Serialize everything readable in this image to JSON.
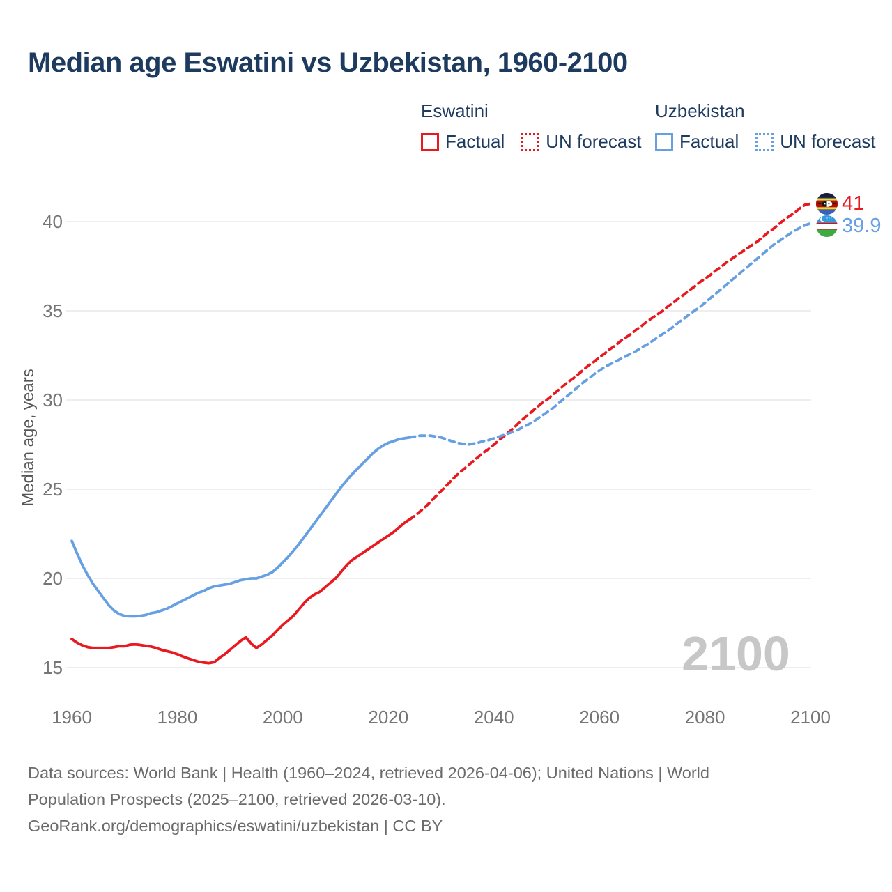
{
  "title": "Median age Eswatini vs Uzbekistan, 1960-2100",
  "legend": {
    "groups": [
      {
        "header": "Eswatini",
        "color": "#e8191f",
        "items": [
          {
            "label": "Factual",
            "style": "solid"
          },
          {
            "label": "UN forecast",
            "style": "dotted"
          }
        ]
      },
      {
        "header": "Uzbekistan",
        "color": "#67a0e2",
        "items": [
          {
            "label": "Factual",
            "style": "solid"
          },
          {
            "label": "UN forecast",
            "style": "dotted"
          }
        ]
      }
    ]
  },
  "chart_data": {
    "type": "line",
    "title": "Median age Eswatini vs Uzbekistan, 1960-2100",
    "xlabel": "",
    "ylabel": "Median age, years",
    "xlim": [
      1960,
      2100
    ],
    "ylim": [
      15,
      40
    ],
    "x_ticks": [
      1960,
      1980,
      2000,
      2020,
      2040,
      2060,
      2080,
      2100
    ],
    "y_ticks": [
      15,
      20,
      25,
      30,
      35,
      40
    ],
    "grid": "horizontal",
    "legend_position": "top",
    "watermark": "2100",
    "series": [
      {
        "name": "Eswatini factual",
        "color": "#e8191f",
        "dash": false,
        "points": [
          [
            1960,
            16.6
          ],
          [
            1961,
            16.4
          ],
          [
            1962,
            16.25
          ],
          [
            1963,
            16.15
          ],
          [
            1964,
            16.1
          ],
          [
            1965,
            16.1
          ],
          [
            1966,
            16.1
          ],
          [
            1967,
            16.1
          ],
          [
            1968,
            16.15
          ],
          [
            1969,
            16.2
          ],
          [
            1970,
            16.2
          ],
          [
            1971,
            16.28
          ],
          [
            1972,
            16.3
          ],
          [
            1973,
            16.27
          ],
          [
            1974,
            16.22
          ],
          [
            1975,
            16.18
          ],
          [
            1976,
            16.1
          ],
          [
            1977,
            16.0
          ],
          [
            1978,
            15.92
          ],
          [
            1979,
            15.85
          ],
          [
            1980,
            15.75
          ],
          [
            1981,
            15.63
          ],
          [
            1982,
            15.52
          ],
          [
            1983,
            15.42
          ],
          [
            1984,
            15.33
          ],
          [
            1985,
            15.28
          ],
          [
            1986,
            15.25
          ],
          [
            1987,
            15.3
          ],
          [
            1988,
            15.55
          ],
          [
            1989,
            15.75
          ],
          [
            1990,
            16.0
          ],
          [
            1991,
            16.25
          ],
          [
            1992,
            16.5
          ],
          [
            1993,
            16.7
          ],
          [
            1994,
            16.35
          ],
          [
            1995,
            16.1
          ],
          [
            1996,
            16.3
          ],
          [
            1997,
            16.55
          ],
          [
            1998,
            16.8
          ],
          [
            1999,
            17.1
          ],
          [
            2000,
            17.4
          ],
          [
            2001,
            17.65
          ],
          [
            2002,
            17.9
          ],
          [
            2003,
            18.25
          ],
          [
            2004,
            18.6
          ],
          [
            2005,
            18.9
          ],
          [
            2006,
            19.1
          ],
          [
            2007,
            19.25
          ],
          [
            2008,
            19.5
          ],
          [
            2009,
            19.75
          ],
          [
            2010,
            20.0
          ],
          [
            2011,
            20.35
          ],
          [
            2012,
            20.7
          ],
          [
            2013,
            21.0
          ],
          [
            2014,
            21.2
          ],
          [
            2015,
            21.4
          ],
          [
            2016,
            21.6
          ],
          [
            2017,
            21.8
          ],
          [
            2018,
            22.0
          ],
          [
            2019,
            22.2
          ],
          [
            2020,
            22.4
          ],
          [
            2021,
            22.6
          ],
          [
            2022,
            22.85
          ],
          [
            2023,
            23.1
          ],
          [
            2024,
            23.3
          ]
        ]
      },
      {
        "name": "Eswatini UN forecast",
        "color": "#e8191f",
        "dash": true,
        "points": [
          [
            2024,
            23.3
          ],
          [
            2025,
            23.5
          ],
          [
            2026,
            23.75
          ],
          [
            2027,
            24.0
          ],
          [
            2028,
            24.3
          ],
          [
            2029,
            24.6
          ],
          [
            2030,
            24.9
          ],
          [
            2031,
            25.2
          ],
          [
            2032,
            25.5
          ],
          [
            2033,
            25.8
          ],
          [
            2034,
            26.05
          ],
          [
            2035,
            26.3
          ],
          [
            2036,
            26.55
          ],
          [
            2037,
            26.8
          ],
          [
            2038,
            27.05
          ],
          [
            2039,
            27.25
          ],
          [
            2040,
            27.5
          ],
          [
            2041,
            27.75
          ],
          [
            2042,
            28.0
          ],
          [
            2043,
            28.25
          ],
          [
            2044,
            28.5
          ],
          [
            2045,
            28.8
          ],
          [
            2046,
            29.05
          ],
          [
            2047,
            29.3
          ],
          [
            2048,
            29.55
          ],
          [
            2049,
            29.8
          ],
          [
            2050,
            30.0
          ],
          [
            2051,
            30.25
          ],
          [
            2052,
            30.5
          ],
          [
            2053,
            30.75
          ],
          [
            2054,
            31.0
          ],
          [
            2055,
            31.2
          ],
          [
            2056,
            31.45
          ],
          [
            2057,
            31.7
          ],
          [
            2058,
            31.95
          ],
          [
            2059,
            32.15
          ],
          [
            2060,
            32.4
          ],
          [
            2061,
            32.6
          ],
          [
            2062,
            32.85
          ],
          [
            2063,
            33.05
          ],
          [
            2064,
            33.3
          ],
          [
            2065,
            33.5
          ],
          [
            2066,
            33.7
          ],
          [
            2067,
            33.95
          ],
          [
            2068,
            34.15
          ],
          [
            2069,
            34.4
          ],
          [
            2070,
            34.6
          ],
          [
            2071,
            34.8
          ],
          [
            2072,
            35.0
          ],
          [
            2073,
            35.25
          ],
          [
            2074,
            35.45
          ],
          [
            2075,
            35.7
          ],
          [
            2076,
            35.9
          ],
          [
            2077,
            36.15
          ],
          [
            2078,
            36.35
          ],
          [
            2079,
            36.6
          ],
          [
            2080,
            36.8
          ],
          [
            2081,
            37.0
          ],
          [
            2082,
            37.25
          ],
          [
            2083,
            37.45
          ],
          [
            2084,
            37.7
          ],
          [
            2085,
            37.9
          ],
          [
            2086,
            38.1
          ],
          [
            2087,
            38.3
          ],
          [
            2088,
            38.5
          ],
          [
            2089,
            38.7
          ],
          [
            2090,
            38.9
          ],
          [
            2091,
            39.15
          ],
          [
            2092,
            39.4
          ],
          [
            2093,
            39.6
          ],
          [
            2094,
            39.85
          ],
          [
            2095,
            40.1
          ],
          [
            2096,
            40.3
          ],
          [
            2097,
            40.5
          ],
          [
            2098,
            40.75
          ],
          [
            2099,
            40.95
          ],
          [
            2100,
            41.0
          ]
        ]
      },
      {
        "name": "Uzbekistan factual",
        "color": "#67a0e2",
        "dash": false,
        "points": [
          [
            1960,
            22.1
          ],
          [
            1961,
            21.4
          ],
          [
            1962,
            20.75
          ],
          [
            1963,
            20.2
          ],
          [
            1964,
            19.7
          ],
          [
            1965,
            19.3
          ],
          [
            1966,
            18.9
          ],
          [
            1967,
            18.5
          ],
          [
            1968,
            18.2
          ],
          [
            1969,
            18.0
          ],
          [
            1970,
            17.9
          ],
          [
            1971,
            17.88
          ],
          [
            1972,
            17.88
          ],
          [
            1973,
            17.9
          ],
          [
            1974,
            17.95
          ],
          [
            1975,
            18.05
          ],
          [
            1976,
            18.1
          ],
          [
            1977,
            18.2
          ],
          [
            1978,
            18.3
          ],
          [
            1979,
            18.45
          ],
          [
            1980,
            18.6
          ],
          [
            1981,
            18.75
          ],
          [
            1982,
            18.9
          ],
          [
            1983,
            19.05
          ],
          [
            1984,
            19.2
          ],
          [
            1985,
            19.3
          ],
          [
            1986,
            19.45
          ],
          [
            1987,
            19.55
          ],
          [
            1988,
            19.6
          ],
          [
            1989,
            19.65
          ],
          [
            1990,
            19.7
          ],
          [
            1991,
            19.8
          ],
          [
            1992,
            19.9
          ],
          [
            1993,
            19.95
          ],
          [
            1994,
            20.0
          ],
          [
            1995,
            20.0
          ],
          [
            1996,
            20.1
          ],
          [
            1997,
            20.2
          ],
          [
            1998,
            20.35
          ],
          [
            1999,
            20.6
          ],
          [
            2000,
            20.9
          ],
          [
            2001,
            21.2
          ],
          [
            2002,
            21.55
          ],
          [
            2003,
            21.9
          ],
          [
            2004,
            22.3
          ],
          [
            2005,
            22.7
          ],
          [
            2006,
            23.1
          ],
          [
            2007,
            23.5
          ],
          [
            2008,
            23.9
          ],
          [
            2009,
            24.3
          ],
          [
            2010,
            24.7
          ],
          [
            2011,
            25.1
          ],
          [
            2012,
            25.45
          ],
          [
            2013,
            25.8
          ],
          [
            2014,
            26.1
          ],
          [
            2015,
            26.4
          ],
          [
            2016,
            26.7
          ],
          [
            2017,
            27.0
          ],
          [
            2018,
            27.25
          ],
          [
            2019,
            27.45
          ],
          [
            2020,
            27.6
          ],
          [
            2021,
            27.7
          ],
          [
            2022,
            27.8
          ],
          [
            2023,
            27.85
          ],
          [
            2024,
            27.9
          ]
        ]
      },
      {
        "name": "Uzbekistan UN forecast",
        "color": "#67a0e2",
        "dash": true,
        "points": [
          [
            2024,
            27.9
          ],
          [
            2025,
            27.95
          ],
          [
            2026,
            28.0
          ],
          [
            2027,
            28.0
          ],
          [
            2028,
            28.0
          ],
          [
            2029,
            27.95
          ],
          [
            2030,
            27.9
          ],
          [
            2031,
            27.8
          ],
          [
            2032,
            27.7
          ],
          [
            2033,
            27.6
          ],
          [
            2034,
            27.55
          ],
          [
            2035,
            27.5
          ],
          [
            2036,
            27.55
          ],
          [
            2037,
            27.6
          ],
          [
            2038,
            27.7
          ],
          [
            2039,
            27.75
          ],
          [
            2040,
            27.85
          ],
          [
            2041,
            27.95
          ],
          [
            2042,
            28.05
          ],
          [
            2043,
            28.15
          ],
          [
            2044,
            28.25
          ],
          [
            2045,
            28.4
          ],
          [
            2046,
            28.55
          ],
          [
            2047,
            28.7
          ],
          [
            2048,
            28.9
          ],
          [
            2049,
            29.1
          ],
          [
            2050,
            29.3
          ],
          [
            2051,
            29.5
          ],
          [
            2052,
            29.75
          ],
          [
            2053,
            30.0
          ],
          [
            2054,
            30.25
          ],
          [
            2055,
            30.5
          ],
          [
            2056,
            30.75
          ],
          [
            2057,
            31.0
          ],
          [
            2058,
            31.2
          ],
          [
            2059,
            31.45
          ],
          [
            2060,
            31.65
          ],
          [
            2061,
            31.85
          ],
          [
            2062,
            32.0
          ],
          [
            2063,
            32.15
          ],
          [
            2064,
            32.3
          ],
          [
            2065,
            32.45
          ],
          [
            2066,
            32.6
          ],
          [
            2067,
            32.75
          ],
          [
            2068,
            32.95
          ],
          [
            2069,
            33.1
          ],
          [
            2070,
            33.3
          ],
          [
            2071,
            33.5
          ],
          [
            2072,
            33.7
          ],
          [
            2073,
            33.9
          ],
          [
            2074,
            34.1
          ],
          [
            2075,
            34.35
          ],
          [
            2076,
            34.55
          ],
          [
            2077,
            34.8
          ],
          [
            2078,
            35.0
          ],
          [
            2079,
            35.2
          ],
          [
            2080,
            35.45
          ],
          [
            2081,
            35.7
          ],
          [
            2082,
            35.95
          ],
          [
            2083,
            36.2
          ],
          [
            2084,
            36.45
          ],
          [
            2085,
            36.7
          ],
          [
            2086,
            36.95
          ],
          [
            2087,
            37.2
          ],
          [
            2088,
            37.45
          ],
          [
            2089,
            37.7
          ],
          [
            2090,
            37.95
          ],
          [
            2091,
            38.2
          ],
          [
            2092,
            38.45
          ],
          [
            2093,
            38.7
          ],
          [
            2094,
            38.9
          ],
          [
            2095,
            39.1
          ],
          [
            2096,
            39.3
          ],
          [
            2097,
            39.5
          ],
          [
            2098,
            39.65
          ],
          [
            2099,
            39.8
          ],
          [
            2100,
            39.9
          ]
        ]
      }
    ],
    "end_labels": [
      {
        "country": "Eswatini",
        "value": "41",
        "color": "#e8191f",
        "flag": "eswatini-flag"
      },
      {
        "country": "Uzbekistan",
        "value": "39.9",
        "color": "#67a0e2",
        "flag": "uzbekistan-flag"
      }
    ]
  },
  "footer": {
    "line1": "Data sources: World Bank | Health (1960–2024, retrieved 2026-04-06); United Nations | World",
    "line2": "Population Prospects (2025–2100, retrieved 2026-03-10).",
    "line3": "GeoRank.org/demographics/eswatini/uzbekistan | CC BY"
  }
}
